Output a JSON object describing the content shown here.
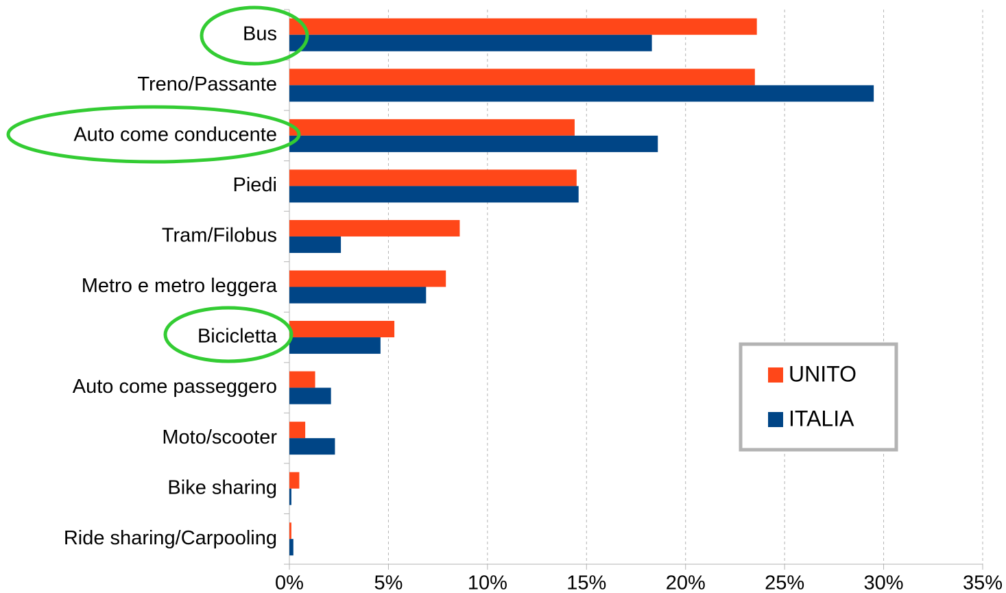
{
  "chart_data": {
    "type": "barh",
    "categories": [
      "Bus",
      "Treno/Passante",
      "Auto come conducente",
      "Piedi",
      "Tram/Filobus",
      "Metro e  metro leggera",
      "Bicicletta",
      "Auto come passeggero",
      "Moto/scooter",
      "Bike sharing",
      "Ride sharing/Carpooling"
    ],
    "series": [
      {
        "name": "UNITO",
        "color": "#ff4719",
        "values": [
          23.6,
          23.5,
          14.4,
          14.5,
          8.6,
          7.9,
          5.3,
          1.3,
          0.8,
          0.5,
          0.1
        ]
      },
      {
        "name": "ITALIA",
        "color": "#004586",
        "values": [
          18.3,
          29.5,
          18.6,
          14.6,
          2.6,
          6.9,
          4.6,
          2.1,
          2.3,
          0.1,
          0.2
        ]
      }
    ],
    "xlim": [
      0,
      35
    ],
    "xticks": [
      {
        "value": 0,
        "label": "0%"
      },
      {
        "value": 5,
        "label": "5%"
      },
      {
        "value": 10,
        "label": "10%"
      },
      {
        "value": 15,
        "label": "15%"
      },
      {
        "value": 20,
        "label": "20%"
      },
      {
        "value": 25,
        "label": "25%"
      },
      {
        "value": 30,
        "label": "30%"
      },
      {
        "value": 35,
        "label": "35%"
      }
    ],
    "grid": true,
    "legend": "right"
  }
}
